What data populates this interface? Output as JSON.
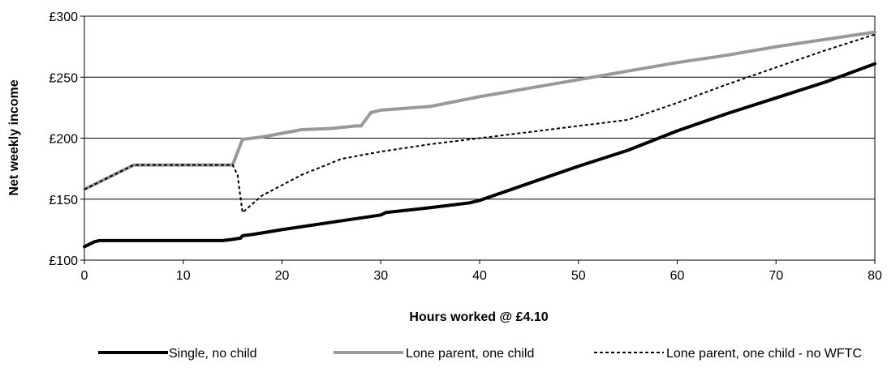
{
  "chart_data": {
    "type": "line",
    "title": "",
    "xlabel": "Hours worked @ £4.10",
    "ylabel": "Net weekly  income",
    "xlim": [
      0,
      80
    ],
    "ylim": [
      100,
      300
    ],
    "x_ticks": [
      0,
      10,
      20,
      30,
      40,
      50,
      60,
      70,
      80
    ],
    "x_tick_labels": [
      "0",
      "10",
      "20",
      "30",
      "40",
      "50",
      "60",
      "70",
      "80"
    ],
    "y_ticks": [
      100,
      150,
      200,
      250,
      300
    ],
    "y_tick_labels": [
      "£100",
      "£150",
      "£200",
      "£250",
      "£300"
    ],
    "grid": "horizontal",
    "legend_position": "bottom",
    "series": [
      {
        "name": "Single, no child",
        "color": "#000000",
        "style": "solid-thick",
        "points": [
          [
            0,
            111
          ],
          [
            1,
            115
          ],
          [
            1.5,
            116
          ],
          [
            5,
            116
          ],
          [
            10,
            116
          ],
          [
            14,
            116
          ],
          [
            15,
            117
          ],
          [
            15.8,
            118
          ],
          [
            16,
            120
          ],
          [
            17,
            121
          ],
          [
            20,
            125
          ],
          [
            25,
            131
          ],
          [
            30,
            137
          ],
          [
            30.5,
            139
          ],
          [
            35,
            143
          ],
          [
            39,
            147
          ],
          [
            40,
            149
          ],
          [
            45,
            163
          ],
          [
            50,
            177
          ],
          [
            55,
            190
          ],
          [
            60,
            206
          ],
          [
            65,
            220
          ],
          [
            70,
            233
          ],
          [
            75,
            246
          ],
          [
            80,
            261
          ]
        ]
      },
      {
        "name": "Lone parent, one child",
        "color": "#999999",
        "style": "solid-thick",
        "points": [
          [
            0,
            158
          ],
          [
            2,
            166
          ],
          [
            4,
            174
          ],
          [
            5,
            178
          ],
          [
            10,
            178
          ],
          [
            15,
            178
          ],
          [
            16,
            199
          ],
          [
            18,
            201
          ],
          [
            20,
            204
          ],
          [
            22,
            207
          ],
          [
            25,
            208
          ],
          [
            27.5,
            210
          ],
          [
            28,
            210
          ],
          [
            29,
            221
          ],
          [
            30,
            223
          ],
          [
            35,
            226
          ],
          [
            40,
            234
          ],
          [
            45,
            241
          ],
          [
            50,
            248
          ],
          [
            55,
            255
          ],
          [
            60,
            262
          ],
          [
            65,
            268
          ],
          [
            70,
            275
          ],
          [
            75,
            281
          ],
          [
            80,
            287
          ]
        ]
      },
      {
        "name": "Lone parent, one child - no WFTC",
        "color": "#000000",
        "style": "dashed",
        "points": [
          [
            0,
            158
          ],
          [
            2,
            166
          ],
          [
            4,
            174
          ],
          [
            5,
            178
          ],
          [
            10,
            178
          ],
          [
            15,
            178
          ],
          [
            15.5,
            170
          ],
          [
            16,
            139
          ],
          [
            18,
            153
          ],
          [
            22,
            170
          ],
          [
            26,
            183
          ],
          [
            30,
            189
          ],
          [
            35,
            195
          ],
          [
            40,
            200
          ],
          [
            45,
            205
          ],
          [
            50,
            210
          ],
          [
            55,
            215
          ],
          [
            60,
            229
          ],
          [
            65,
            244
          ],
          [
            70,
            258
          ],
          [
            75,
            272
          ],
          [
            80,
            285
          ]
        ]
      }
    ]
  }
}
